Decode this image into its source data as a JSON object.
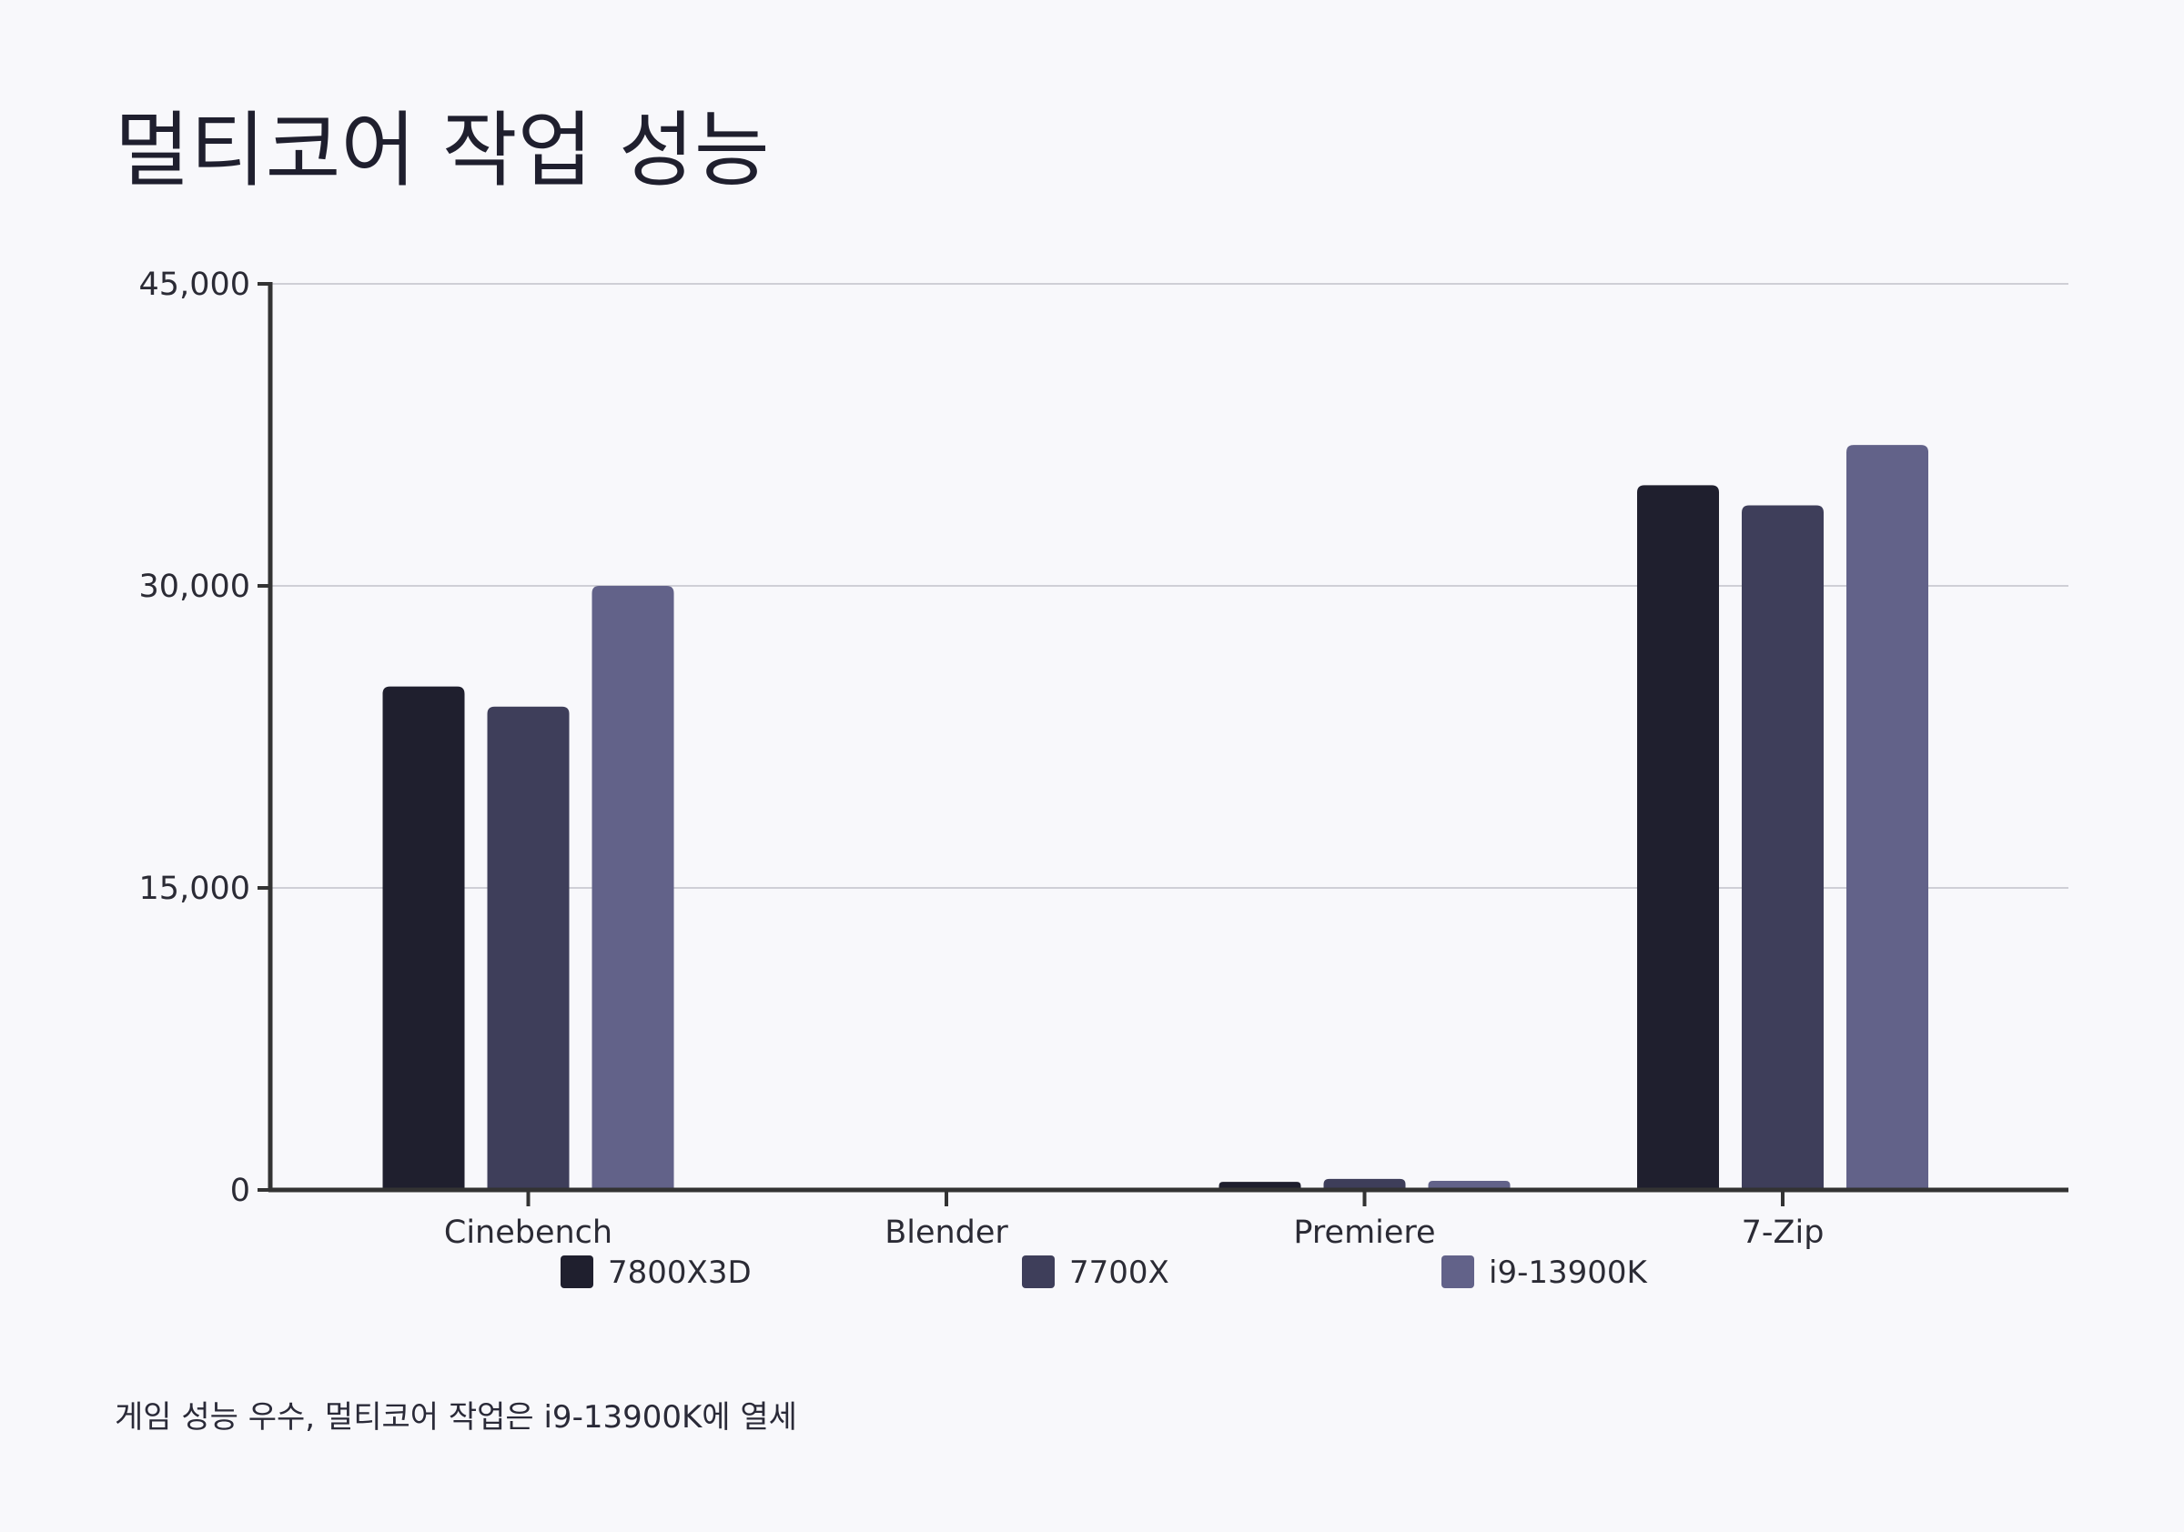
{
  "title": "멀티코어 작업 성능",
  "note": "게임 성능 우수, 멀티코어 작업은 i9-13900K에 열세",
  "colors": {
    "7800X3D": "#1f1f2e",
    "7700X": "#3e3e5a",
    "i9-13900K": "#626289",
    "grid": "#cfcfd6",
    "axis": "#333333"
  },
  "chart_data": {
    "type": "bar",
    "title": "멀티코어 작업 성능",
    "categories": [
      "Cinebench",
      "Blender",
      "Premiere",
      "7-Zip"
    ],
    "series": [
      {
        "name": "7800X3D",
        "values": [
          25000,
          0,
          400,
          35000
        ]
      },
      {
        "name": "7700X",
        "values": [
          24000,
          0,
          550,
          34000
        ]
      },
      {
        "name": "i9-13900K",
        "values": [
          30000,
          0,
          450,
          37000
        ]
      }
    ],
    "yticks": [
      "0",
      "15,000",
      "30,000",
      "45,000"
    ],
    "ytick_values": [
      0,
      15000,
      30000,
      45000
    ],
    "ylim": [
      0,
      45000
    ],
    "grid": true,
    "legend_position": "bottom"
  }
}
